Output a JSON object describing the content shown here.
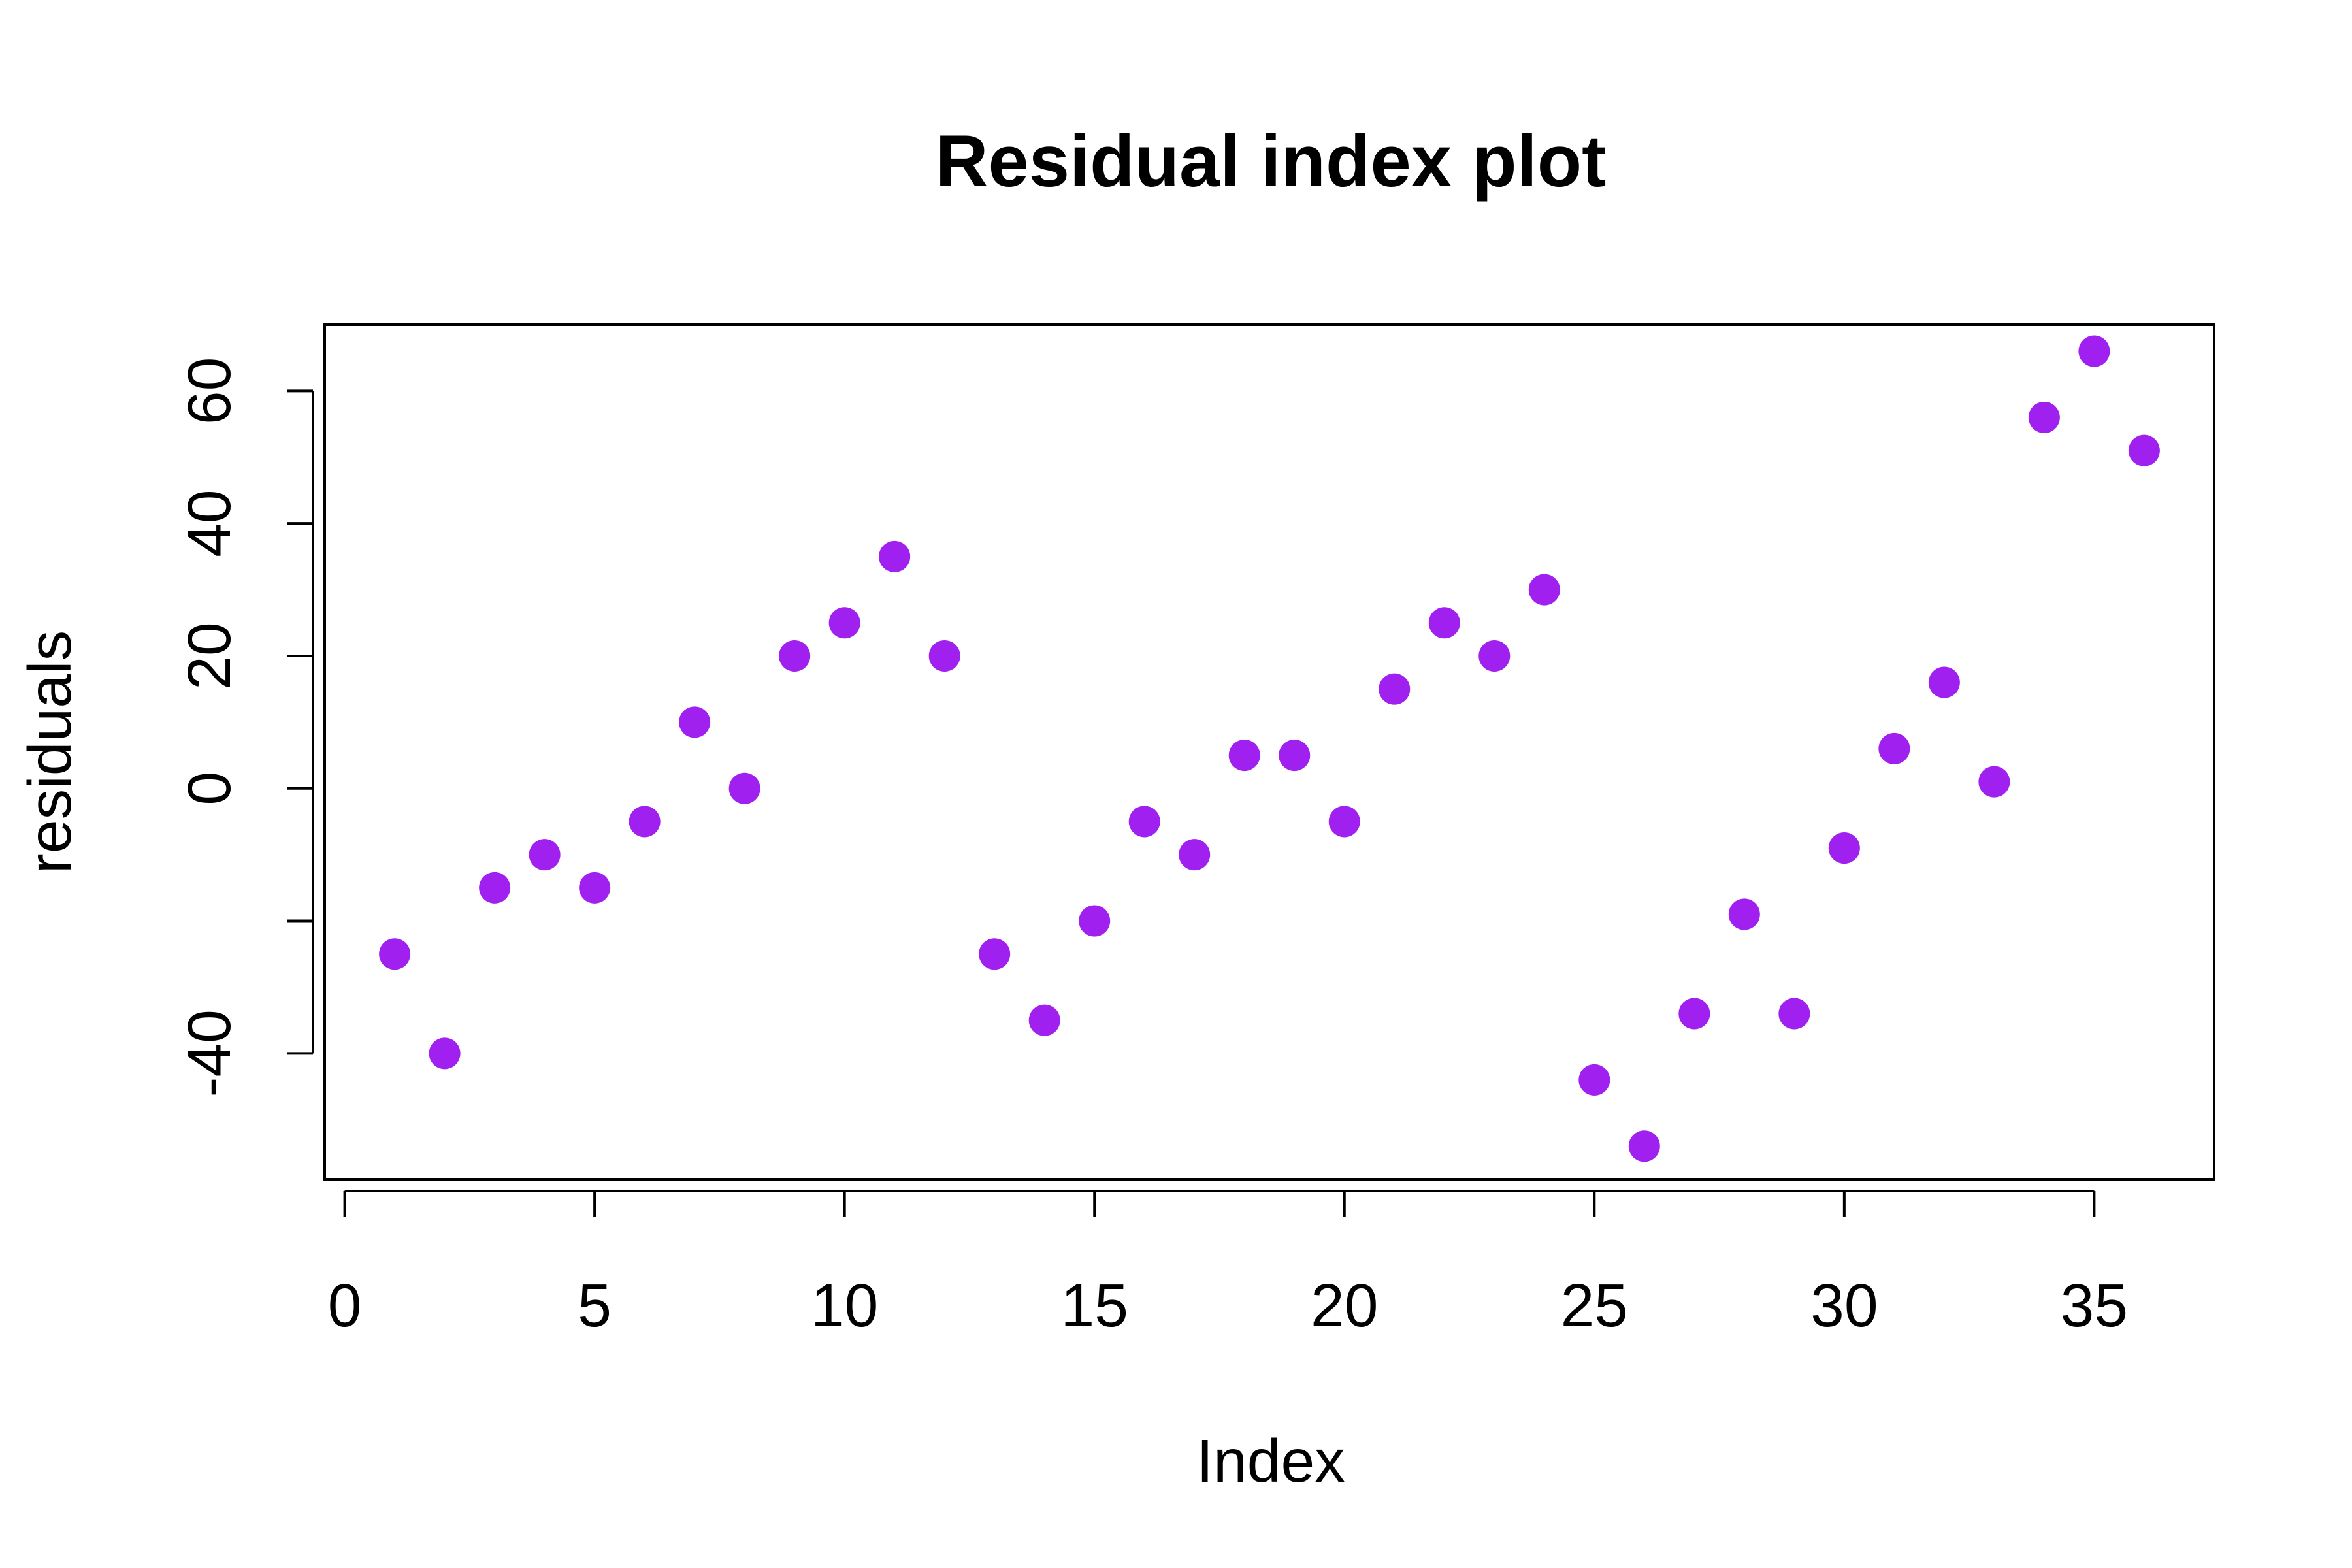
{
  "chart_data": {
    "type": "scatter",
    "title": "Residual index plot",
    "xlabel": "Index",
    "ylabel": "residuals",
    "xlim": [
      -0.4,
      37.4
    ],
    "ylim": [
      -59,
      70
    ],
    "x_ticks": [
      0,
      5,
      10,
      15,
      20,
      25,
      30,
      35
    ],
    "x_tick_labels": [
      "0",
      "5",
      "10",
      "15",
      "20",
      "25",
      "30",
      "35"
    ],
    "y_ticks": [
      -40,
      -20,
      0,
      20,
      40,
      60
    ],
    "y_tick_labels": [
      "-40",
      "",
      "0",
      "20",
      "40",
      "60"
    ],
    "grid": false,
    "legend": "none",
    "point_color": "#A020F0",
    "series": [
      {
        "x": [
          1,
          2,
          3,
          4,
          5,
          6,
          7,
          8,
          9,
          10,
          11,
          12,
          13,
          14,
          15,
          16,
          17,
          18,
          19,
          20,
          21,
          22,
          23,
          24,
          25,
          26,
          27,
          28,
          29,
          30,
          31,
          32,
          33,
          34,
          35,
          36
        ],
        "y": [
          -25,
          -40,
          -15,
          -10,
          -15,
          -5,
          10,
          0,
          20,
          25,
          35,
          20,
          -25,
          -35,
          -20,
          -5,
          -10,
          5,
          5,
          -5,
          15,
          25,
          20,
          30,
          -44,
          -54,
          -34,
          -19,
          -34,
          -9,
          6,
          16,
          1,
          56,
          66,
          51
        ]
      }
    ]
  }
}
